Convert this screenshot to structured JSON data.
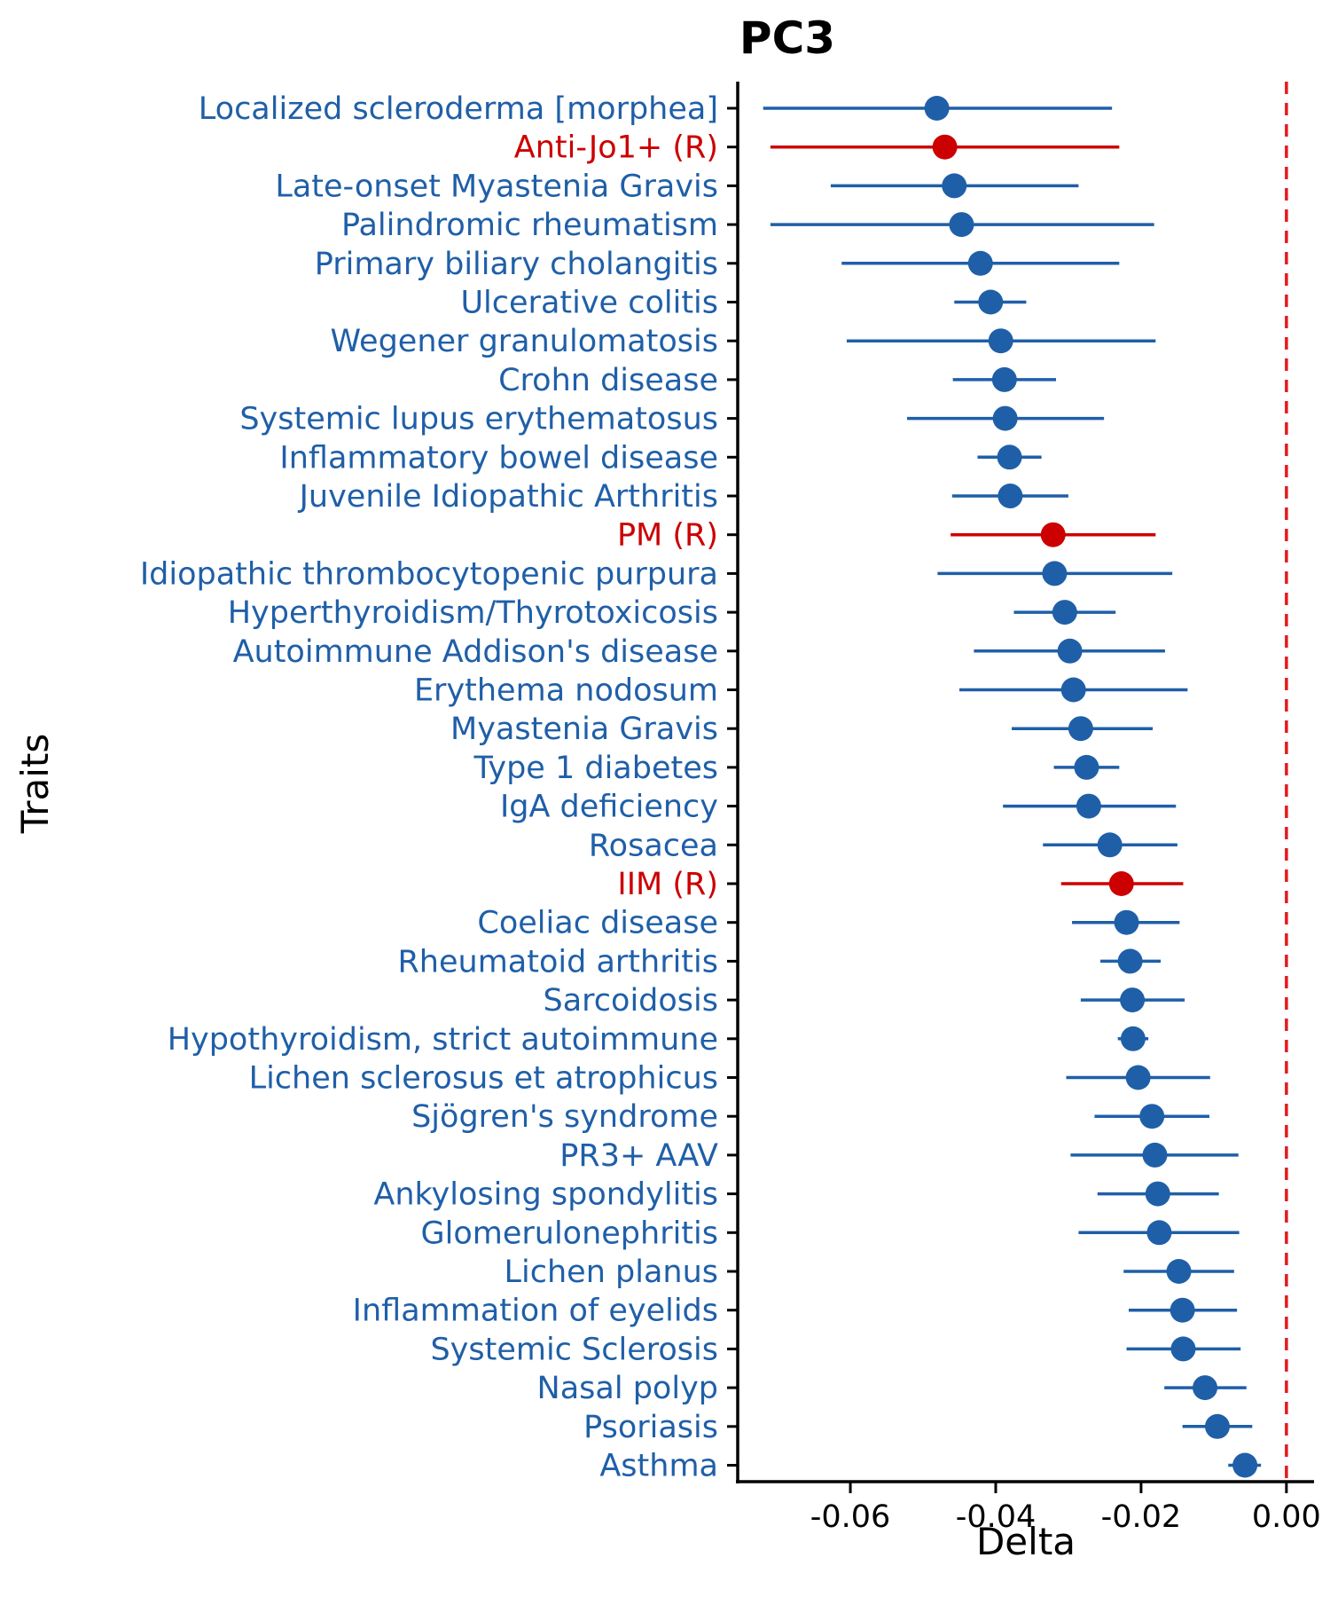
{
  "chart_data": {
    "type": "scatter",
    "subtype": "forest-plot",
    "title": "PC3",
    "xlabel": "Delta",
    "ylabel": "Traits",
    "xlim": [
      -0.0755,
      0.0038
    ],
    "x_ticks": [
      -0.06,
      -0.04,
      -0.02,
      0.0
    ],
    "x_tick_labels": [
      "-0.06",
      "-0.04",
      "-0.02",
      "0.00"
    ],
    "reference_line": {
      "x": 0.0,
      "style": "dashed",
      "color": "#e41a1c"
    },
    "grid": false,
    "legend": "none",
    "colors": {
      "default": "#1f5fa8",
      "highlight": "#cc0000"
    },
    "traits": [
      {
        "name": "Localized scleroderma [morphea]",
        "estimate": -0.0481,
        "lower": -0.072,
        "upper": -0.024,
        "highlight": false
      },
      {
        "name": "Anti-Jo1+ (R)",
        "estimate": -0.047,
        "lower": -0.071,
        "upper": -0.023,
        "highlight": true
      },
      {
        "name": "Late-onset Myastenia Gravis",
        "estimate": -0.0457,
        "lower": -0.0627,
        "upper": -0.0286,
        "highlight": false
      },
      {
        "name": "Palindromic rheumatism",
        "estimate": -0.0447,
        "lower": -0.071,
        "upper": -0.0182,
        "highlight": false
      },
      {
        "name": "Primary biliary cholangitis",
        "estimate": -0.0421,
        "lower": -0.0612,
        "upper": -0.023,
        "highlight": false
      },
      {
        "name": "Ulcerative colitis",
        "estimate": -0.0407,
        "lower": -0.0457,
        "upper": -0.0358,
        "highlight": false
      },
      {
        "name": "Wegener granulomatosis",
        "estimate": -0.0393,
        "lower": -0.0605,
        "upper": -0.018,
        "highlight": false
      },
      {
        "name": "Crohn disease",
        "estimate": -0.0388,
        "lower": -0.0459,
        "upper": -0.0317,
        "highlight": false
      },
      {
        "name": "Systemic lupus erythematosus",
        "estimate": -0.0387,
        "lower": -0.0522,
        "upper": -0.0251,
        "highlight": false
      },
      {
        "name": "Inflammatory bowel disease",
        "estimate": -0.0381,
        "lower": -0.0425,
        "upper": -0.0337,
        "highlight": false
      },
      {
        "name": "Juvenile Idiopathic Arthritis",
        "estimate": -0.038,
        "lower": -0.046,
        "upper": -0.03,
        "highlight": false
      },
      {
        "name": "PM (R)",
        "estimate": -0.0321,
        "lower": -0.0462,
        "upper": -0.018,
        "highlight": true
      },
      {
        "name": "Idiopathic thrombocytopenic purpura",
        "estimate": -0.0319,
        "lower": -0.048,
        "upper": -0.0157,
        "highlight": false
      },
      {
        "name": "Hyperthyroidism/Thyrotoxicosis",
        "estimate": -0.0305,
        "lower": -0.0375,
        "upper": -0.0235,
        "highlight": false
      },
      {
        "name": "Autoimmune Addison's disease",
        "estimate": -0.0298,
        "lower": -0.043,
        "upper": -0.0167,
        "highlight": false
      },
      {
        "name": "Erythema nodosum",
        "estimate": -0.0293,
        "lower": -0.045,
        "upper": -0.0136,
        "highlight": false
      },
      {
        "name": "Myastenia Gravis",
        "estimate": -0.0283,
        "lower": -0.0378,
        "upper": -0.0184,
        "highlight": false
      },
      {
        "name": "Type 1 diabetes",
        "estimate": -0.0275,
        "lower": -0.032,
        "upper": -0.023,
        "highlight": false
      },
      {
        "name": "IgA deficiency",
        "estimate": -0.0272,
        "lower": -0.039,
        "upper": -0.0152,
        "highlight": false
      },
      {
        "name": "Rosacea",
        "estimate": -0.0243,
        "lower": -0.0335,
        "upper": -0.015,
        "highlight": false
      },
      {
        "name": "IIM (R)",
        "estimate": -0.0227,
        "lower": -0.031,
        "upper": -0.0142,
        "highlight": true
      },
      {
        "name": "Coeliac disease",
        "estimate": -0.022,
        "lower": -0.0295,
        "upper": -0.0147,
        "highlight": false
      },
      {
        "name": "Rheumatoid arthritis",
        "estimate": -0.0215,
        "lower": -0.0256,
        "upper": -0.0173,
        "highlight": false
      },
      {
        "name": "Sarcoidosis",
        "estimate": -0.0212,
        "lower": -0.0283,
        "upper": -0.014,
        "highlight": false
      },
      {
        "name": "Hypothyroidism, strict autoimmune",
        "estimate": -0.0211,
        "lower": -0.0232,
        "upper": -0.019,
        "highlight": false
      },
      {
        "name": "Lichen sclerosus et atrophicus",
        "estimate": -0.0204,
        "lower": -0.0303,
        "upper": -0.0105,
        "highlight": false
      },
      {
        "name": "Sjögren's syndrome",
        "estimate": -0.0185,
        "lower": -0.0264,
        "upper": -0.0106,
        "highlight": false
      },
      {
        "name": "PR3+ AAV",
        "estimate": -0.0181,
        "lower": -0.0297,
        "upper": -0.0066,
        "highlight": false
      },
      {
        "name": "Ankylosing spondylitis",
        "estimate": -0.0177,
        "lower": -0.026,
        "upper": -0.0093,
        "highlight": false
      },
      {
        "name": "Glomerulonephritis",
        "estimate": -0.0175,
        "lower": -0.0286,
        "upper": -0.0065,
        "highlight": false
      },
      {
        "name": "Lichen planus",
        "estimate": -0.0148,
        "lower": -0.0224,
        "upper": -0.0072,
        "highlight": false
      },
      {
        "name": "Inflammation of eyelids",
        "estimate": -0.0143,
        "lower": -0.0217,
        "upper": -0.0068,
        "highlight": false
      },
      {
        "name": "Systemic Sclerosis",
        "estimate": -0.0142,
        "lower": -0.022,
        "upper": -0.0063,
        "highlight": false
      },
      {
        "name": "Nasal polyp",
        "estimate": -0.0112,
        "lower": -0.0168,
        "upper": -0.0055,
        "highlight": false
      },
      {
        "name": "Psoriasis",
        "estimate": -0.0095,
        "lower": -0.0143,
        "upper": -0.0047,
        "highlight": false
      },
      {
        "name": "Asthma",
        "estimate": -0.0057,
        "lower": -0.008,
        "upper": -0.0035,
        "highlight": false
      }
    ]
  }
}
